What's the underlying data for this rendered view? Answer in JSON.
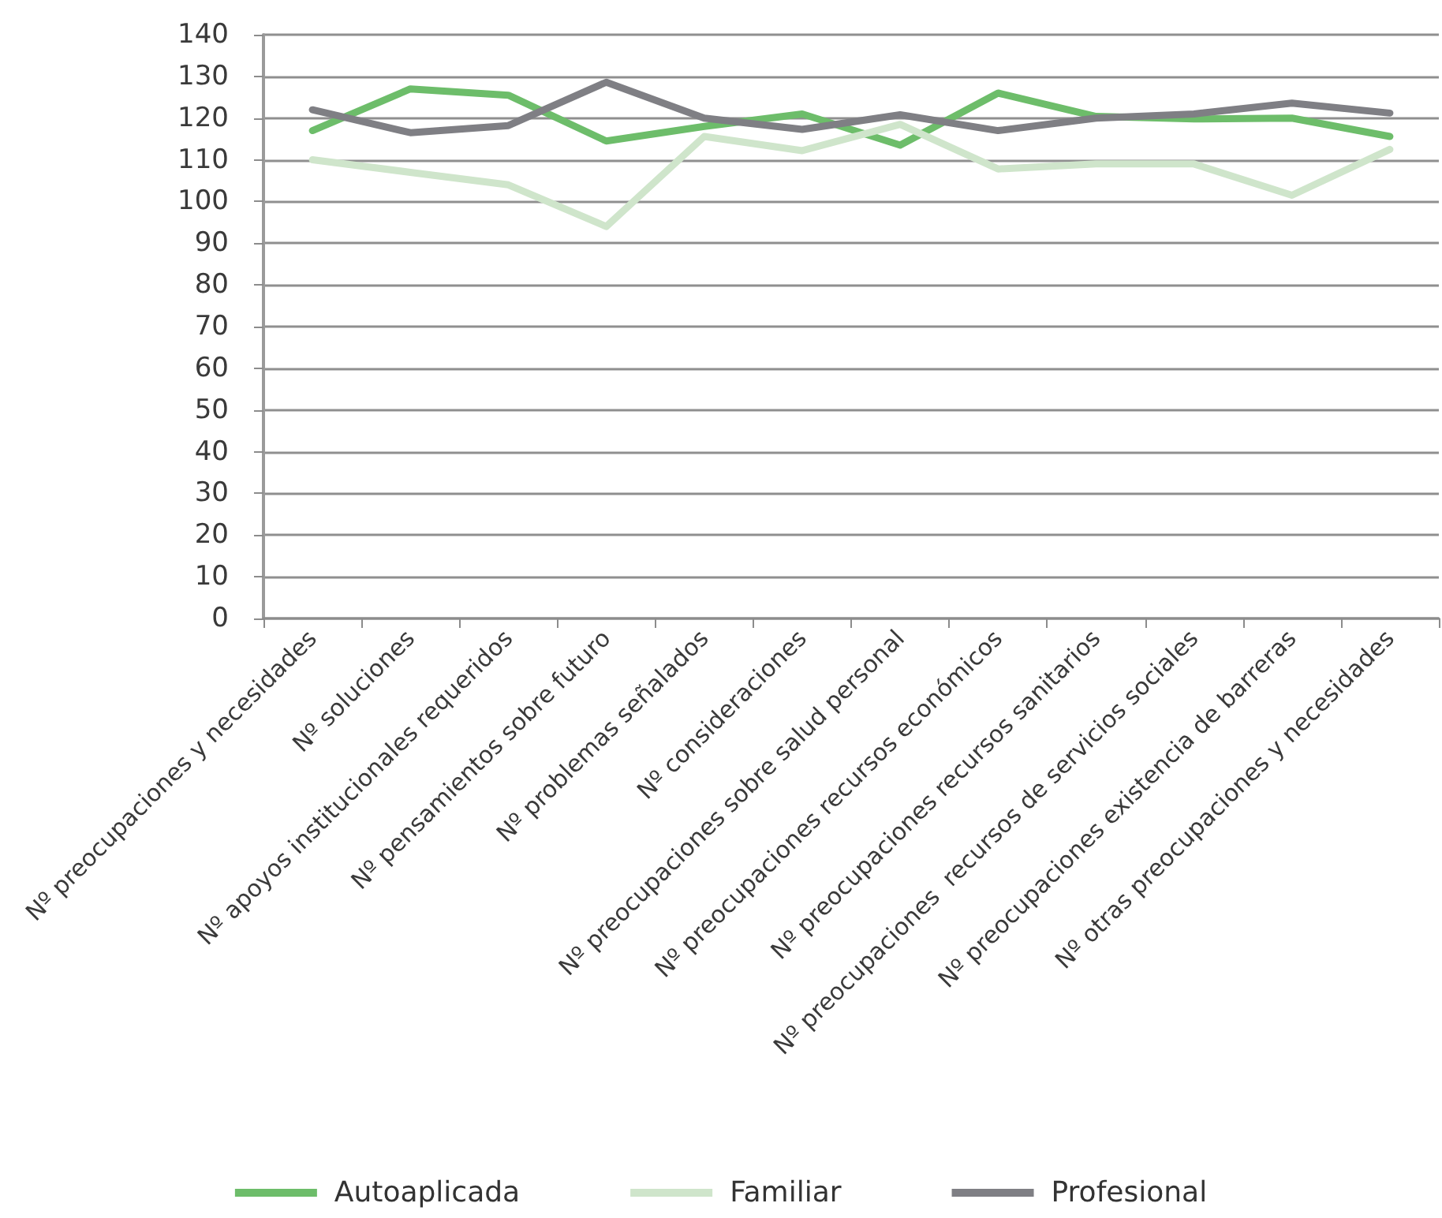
{
  "chart_data": {
    "type": "line",
    "categories": [
      "Nº preocupaciones y necesidades",
      "Nº soluciones",
      "Nº apoyos institucionales requeridos",
      "Nº pensamientos sobre futuro",
      "Nº problemas señalados",
      "Nº consideraciones",
      "Nº preocupaciones sobre salud personal",
      "Nº preocupaciones recursos económicos",
      "Nº preocupaciones recursos sanitarios",
      "Nº preocupaciones  recursos de servicios sociales",
      "Nº preocupaciones existencia de barreras",
      "Nº otras preocupaciones y necesidades"
    ],
    "series": [
      {
        "name": "Autoaplicada",
        "color": "#6dbd6a",
        "values": [
          117,
          127,
          125.5,
          114.5,
          118,
          121,
          113.5,
          126,
          120.4,
          119.8,
          120,
          115.6
        ]
      },
      {
        "name": "Familiar",
        "color": "#cfe5cb",
        "values": [
          110,
          107,
          104,
          94,
          115.6,
          112.2,
          118.5,
          107.8,
          109,
          109,
          101.5,
          112.5
        ]
      },
      {
        "name": "Profesional",
        "color": "#7f7f84",
        "values": [
          122,
          116.5,
          118.2,
          128.6,
          120,
          117.3,
          120.8,
          117,
          120,
          121,
          123.6,
          121.2
        ]
      }
    ],
    "ylim": [
      0,
      140
    ],
    "yticks": [
      0,
      10,
      20,
      30,
      40,
      50,
      60,
      70,
      80,
      90,
      100,
      110,
      120,
      130,
      140
    ],
    "grid": "y",
    "legend": "bottom",
    "marker": "none",
    "line_style": "solid"
  }
}
